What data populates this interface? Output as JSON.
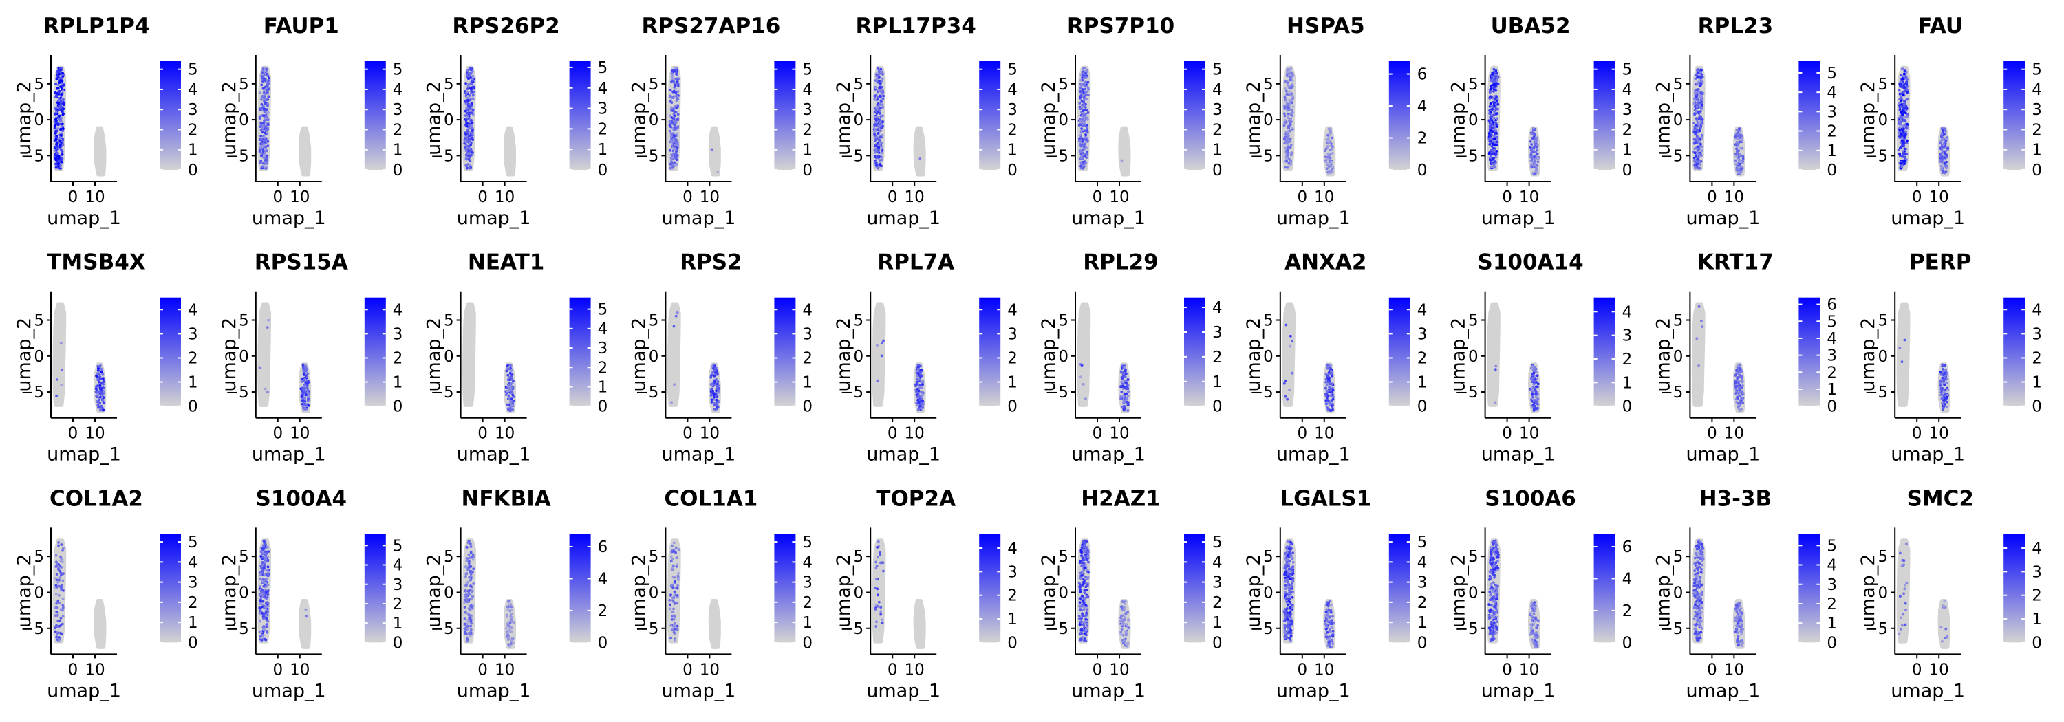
{
  "figure": {
    "x_axis_label": "umap_1",
    "y_axis_label": "umap_2",
    "low_color": "#d3d3d3",
    "high_color": "#0000ff",
    "x_ticks": [
      0,
      10
    ],
    "y_ticks": [
      -5,
      0,
      5
    ]
  },
  "chart_data": [
    {
      "type": "scatter",
      "title": "RPLP1P4",
      "xlabel": "umap_1",
      "ylabel": "umap_2",
      "legend_ticks": [
        0,
        1,
        2,
        3,
        4,
        5
      ],
      "legend_max": 5.4,
      "cluster_a_level": 0.82,
      "cluster_b_level": 0.0,
      "cluster_a_fraction": 0.95,
      "cluster_b_fraction": 0.02
    },
    {
      "type": "scatter",
      "title": "FAUP1",
      "xlabel": "umap_1",
      "ylabel": "umap_2",
      "legend_ticks": [
        0,
        1,
        2,
        3,
        4,
        5
      ],
      "legend_max": 5.4,
      "cluster_a_level": 0.55,
      "cluster_b_level": 0.0,
      "cluster_a_fraction": 0.85,
      "cluster_b_fraction": 0.0
    },
    {
      "type": "scatter",
      "title": "RPS26P2",
      "xlabel": "umap_1",
      "ylabel": "umap_2",
      "legend_ticks": [
        0,
        1,
        2,
        3,
        4,
        5
      ],
      "legend_max": 5.3,
      "cluster_a_level": 0.65,
      "cluster_b_level": 0.0,
      "cluster_a_fraction": 0.9,
      "cluster_b_fraction": 0.0
    },
    {
      "type": "scatter",
      "title": "RPS27AP16",
      "xlabel": "umap_1",
      "ylabel": "umap_2",
      "legend_ticks": [
        0,
        1,
        2,
        3,
        4,
        5
      ],
      "legend_max": 5.4,
      "cluster_a_level": 0.55,
      "cluster_b_level": 0.35,
      "cluster_a_fraction": 0.8,
      "cluster_b_fraction": 0.02
    },
    {
      "type": "scatter",
      "title": "RPL17P34",
      "xlabel": "umap_1",
      "ylabel": "umap_2",
      "legend_ticks": [
        0,
        1,
        2,
        3,
        4,
        5
      ],
      "legend_max": 5.4,
      "cluster_a_level": 0.6,
      "cluster_b_level": 0.3,
      "cluster_a_fraction": 0.85,
      "cluster_b_fraction": 0.01
    },
    {
      "type": "scatter",
      "title": "RPS7P10",
      "xlabel": "umap_1",
      "ylabel": "umap_2",
      "legend_ticks": [
        0,
        1,
        2,
        3,
        4,
        5
      ],
      "legend_max": 5.4,
      "cluster_a_level": 0.55,
      "cluster_b_level": 0.3,
      "cluster_a_fraction": 0.85,
      "cluster_b_fraction": 0.01
    },
    {
      "type": "scatter",
      "title": "HSPA5",
      "xlabel": "umap_1",
      "ylabel": "umap_2",
      "legend_ticks": [
        0,
        2,
        4,
        6
      ],
      "legend_max": 6.8,
      "cluster_a_level": 0.4,
      "cluster_b_level": 0.35,
      "cluster_a_fraction": 0.7,
      "cluster_b_fraction": 0.6
    },
    {
      "type": "scatter",
      "title": "UBA52",
      "xlabel": "umap_1",
      "ylabel": "umap_2",
      "legend_ticks": [
        0,
        1,
        2,
        3,
        4,
        5
      ],
      "legend_max": 5.4,
      "cluster_a_level": 0.75,
      "cluster_b_level": 0.5,
      "cluster_a_fraction": 0.95,
      "cluster_b_fraction": 0.85
    },
    {
      "type": "scatter",
      "title": "RPL23",
      "xlabel": "umap_1",
      "ylabel": "umap_2",
      "legend_ticks": [
        0,
        1,
        2,
        3,
        4,
        5
      ],
      "legend_max": 5.6,
      "cluster_a_level": 0.6,
      "cluster_b_level": 0.5,
      "cluster_a_fraction": 0.9,
      "cluster_b_fraction": 0.85
    },
    {
      "type": "scatter",
      "title": "FAU",
      "xlabel": "umap_1",
      "ylabel": "umap_2",
      "legend_ticks": [
        0,
        1,
        2,
        3,
        4,
        5
      ],
      "legend_max": 5.4,
      "cluster_a_level": 0.75,
      "cluster_b_level": 0.55,
      "cluster_a_fraction": 0.95,
      "cluster_b_fraction": 0.85
    },
    {
      "type": "scatter",
      "title": "TMSB4X",
      "xlabel": "umap_1",
      "ylabel": "umap_2",
      "legend_ticks": [
        0,
        1,
        2,
        3,
        4
      ],
      "legend_max": 4.5,
      "cluster_a_level": 0.45,
      "cluster_b_level": 0.7,
      "cluster_a_fraction": 0.02,
      "cluster_b_fraction": 0.95
    },
    {
      "type": "scatter",
      "title": "RPS15A",
      "xlabel": "umap_1",
      "ylabel": "umap_2",
      "legend_ticks": [
        0,
        1,
        2,
        3,
        4
      ],
      "legend_max": 4.5,
      "cluster_a_level": 0.5,
      "cluster_b_level": 0.65,
      "cluster_a_fraction": 0.02,
      "cluster_b_fraction": 0.95
    },
    {
      "type": "scatter",
      "title": "NEAT1",
      "xlabel": "umap_1",
      "ylabel": "umap_2",
      "legend_ticks": [
        0,
        1,
        2,
        3,
        4,
        5
      ],
      "legend_max": 5.6,
      "cluster_a_level": 0.0,
      "cluster_b_level": 0.6,
      "cluster_a_fraction": 0.0,
      "cluster_b_fraction": 0.9
    },
    {
      "type": "scatter",
      "title": "RPS2",
      "xlabel": "umap_1",
      "ylabel": "umap_2",
      "legend_ticks": [
        0,
        1,
        2,
        3,
        4
      ],
      "legend_max": 4.5,
      "cluster_a_level": 0.5,
      "cluster_b_level": 0.65,
      "cluster_a_fraction": 0.02,
      "cluster_b_fraction": 0.95
    },
    {
      "type": "scatter",
      "title": "RPL7A",
      "xlabel": "umap_1",
      "ylabel": "umap_2",
      "legend_ticks": [
        0,
        1,
        2,
        3,
        4
      ],
      "legend_max": 4.5,
      "cluster_a_level": 0.5,
      "cluster_b_level": 0.6,
      "cluster_a_fraction": 0.02,
      "cluster_b_fraction": 0.9
    },
    {
      "type": "scatter",
      "title": "RPL29",
      "xlabel": "umap_1",
      "ylabel": "umap_2",
      "legend_ticks": [
        0,
        1,
        2,
        3,
        4
      ],
      "legend_max": 4.4,
      "cluster_a_level": 0.5,
      "cluster_b_level": 0.6,
      "cluster_a_fraction": 0.02,
      "cluster_b_fraction": 0.9
    },
    {
      "type": "scatter",
      "title": "ANXA2",
      "xlabel": "umap_1",
      "ylabel": "umap_2",
      "legend_ticks": [
        0,
        1,
        2,
        3,
        4
      ],
      "legend_max": 4.5,
      "cluster_a_level": 0.55,
      "cluster_b_level": 0.6,
      "cluster_a_fraction": 0.04,
      "cluster_b_fraction": 0.9
    },
    {
      "type": "scatter",
      "title": "S100A14",
      "xlabel": "umap_1",
      "ylabel": "umap_2",
      "legend_ticks": [
        0,
        1,
        2,
        3,
        4
      ],
      "legend_max": 4.6,
      "cluster_a_level": 0.5,
      "cluster_b_level": 0.6,
      "cluster_a_fraction": 0.01,
      "cluster_b_fraction": 0.9
    },
    {
      "type": "scatter",
      "title": "KRT17",
      "xlabel": "umap_1",
      "ylabel": "umap_2",
      "legend_ticks": [
        0,
        1,
        2,
        3,
        4,
        5,
        6
      ],
      "legend_max": 6.4,
      "cluster_a_level": 0.45,
      "cluster_b_level": 0.5,
      "cluster_a_fraction": 0.02,
      "cluster_b_fraction": 0.9
    },
    {
      "type": "scatter",
      "title": "PERP",
      "xlabel": "umap_1",
      "ylabel": "umap_2",
      "legend_ticks": [
        0,
        1,
        2,
        3,
        4
      ],
      "legend_max": 4.5,
      "cluster_a_level": 0.5,
      "cluster_b_level": 0.6,
      "cluster_a_fraction": 0.01,
      "cluster_b_fraction": 0.9
    },
    {
      "type": "scatter",
      "title": "COL1A2",
      "xlabel": "umap_1",
      "ylabel": "umap_2",
      "legend_ticks": [
        0,
        1,
        2,
        3,
        4,
        5
      ],
      "legend_max": 5.4,
      "cluster_a_level": 0.5,
      "cluster_b_level": 0.0,
      "cluster_a_fraction": 0.3,
      "cluster_b_fraction": 0.0
    },
    {
      "type": "scatter",
      "title": "S100A4",
      "xlabel": "umap_1",
      "ylabel": "umap_2",
      "legend_ticks": [
        0,
        1,
        2,
        3,
        4,
        5
      ],
      "legend_max": 5.6,
      "cluster_a_level": 0.6,
      "cluster_b_level": 0.4,
      "cluster_a_fraction": 0.85,
      "cluster_b_fraction": 0.02
    },
    {
      "type": "scatter",
      "title": "NFKBIA",
      "xlabel": "umap_1",
      "ylabel": "umap_2",
      "legend_ticks": [
        0,
        2,
        4,
        6
      ],
      "legend_max": 6.8,
      "cluster_a_level": 0.45,
      "cluster_b_level": 0.35,
      "cluster_a_fraction": 0.55,
      "cluster_b_fraction": 0.5
    },
    {
      "type": "scatter",
      "title": "COL1A1",
      "xlabel": "umap_1",
      "ylabel": "umap_2",
      "legend_ticks": [
        0,
        1,
        2,
        3,
        4,
        5
      ],
      "legend_max": 5.4,
      "cluster_a_level": 0.5,
      "cluster_b_level": 0.0,
      "cluster_a_fraction": 0.3,
      "cluster_b_fraction": 0.0
    },
    {
      "type": "scatter",
      "title": "TOP2A",
      "xlabel": "umap_1",
      "ylabel": "umap_2",
      "legend_ticks": [
        0,
        1,
        2,
        3,
        4
      ],
      "legend_max": 4.6,
      "cluster_a_level": 0.55,
      "cluster_b_level": 0.0,
      "cluster_a_fraction": 0.12,
      "cluster_b_fraction": 0.0
    },
    {
      "type": "scatter",
      "title": "H2AZ1",
      "xlabel": "umap_1",
      "ylabel": "umap_2",
      "legend_ticks": [
        0,
        1,
        2,
        3,
        4,
        5
      ],
      "legend_max": 5.4,
      "cluster_a_level": 0.65,
      "cluster_b_level": 0.4,
      "cluster_a_fraction": 0.9,
      "cluster_b_fraction": 0.6
    },
    {
      "type": "scatter",
      "title": "LGALS1",
      "xlabel": "umap_1",
      "ylabel": "umap_2",
      "legend_ticks": [
        0,
        1,
        2,
        3,
        4,
        5
      ],
      "legend_max": 5.4,
      "cluster_a_level": 0.65,
      "cluster_b_level": 0.55,
      "cluster_a_fraction": 0.9,
      "cluster_b_fraction": 0.8
    },
    {
      "type": "scatter",
      "title": "S100A6",
      "xlabel": "umap_1",
      "ylabel": "umap_2",
      "legend_ticks": [
        0,
        2,
        4,
        6
      ],
      "legend_max": 6.8,
      "cluster_a_level": 0.6,
      "cluster_b_level": 0.45,
      "cluster_a_fraction": 0.9,
      "cluster_b_fraction": 0.8
    },
    {
      "type": "scatter",
      "title": "H3-3B",
      "xlabel": "umap_1",
      "ylabel": "umap_2",
      "legend_ticks": [
        0,
        1,
        2,
        3,
        4,
        5
      ],
      "legend_max": 5.6,
      "cluster_a_level": 0.55,
      "cluster_b_level": 0.45,
      "cluster_a_fraction": 0.85,
      "cluster_b_fraction": 0.7
    },
    {
      "type": "scatter",
      "title": "SMC2",
      "xlabel": "umap_1",
      "ylabel": "umap_2",
      "legend_ticks": [
        0,
        1,
        2,
        3,
        4
      ],
      "legend_max": 4.6,
      "cluster_a_level": 0.45,
      "cluster_b_level": 0.4,
      "cluster_a_fraction": 0.08,
      "cluster_b_fraction": 0.1
    }
  ]
}
